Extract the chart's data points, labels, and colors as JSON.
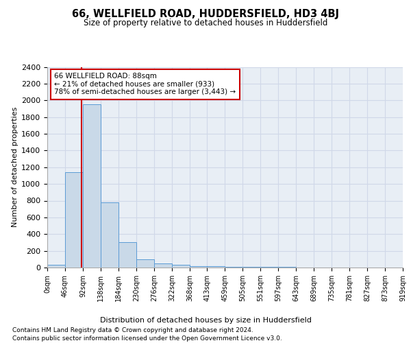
{
  "title": "66, WELLFIELD ROAD, HUDDERSFIELD, HD3 4BJ",
  "subtitle": "Size of property relative to detached houses in Huddersfield",
  "xlabel": "Distribution of detached houses by size in Huddersfield",
  "ylabel": "Number of detached properties",
  "property_size": 88,
  "annotation_line1": "66 WELLFIELD ROAD: 88sqm",
  "annotation_line2": "← 21% of detached houses are smaller (933)",
  "annotation_line3": "78% of semi-detached houses are larger (3,443) →",
  "footer1": "Contains HM Land Registry data © Crown copyright and database right 2024.",
  "footer2": "Contains public sector information licensed under the Open Government Licence v3.0.",
  "bin_edges": [
    0,
    46,
    92,
    138,
    184,
    230,
    276,
    322,
    368,
    413,
    459,
    505,
    551,
    597,
    643,
    689,
    735,
    781,
    827,
    873,
    919
  ],
  "bar_heights": [
    30,
    1140,
    1950,
    780,
    300,
    100,
    50,
    35,
    20,
    15,
    10,
    8,
    6,
    5,
    4,
    3,
    3,
    2,
    2,
    2
  ],
  "bar_color": "#c9d9e8",
  "bar_edge_color": "#5b9bd5",
  "red_line_color": "#cc0000",
  "annotation_box_color": "#cc0000",
  "grid_color": "#d0d8e8",
  "bg_color": "#e8eef5",
  "ylim": [
    0,
    2400
  ],
  "yticks": [
    0,
    200,
    400,
    600,
    800,
    1000,
    1200,
    1400,
    1600,
    1800,
    2000,
    2200,
    2400
  ]
}
